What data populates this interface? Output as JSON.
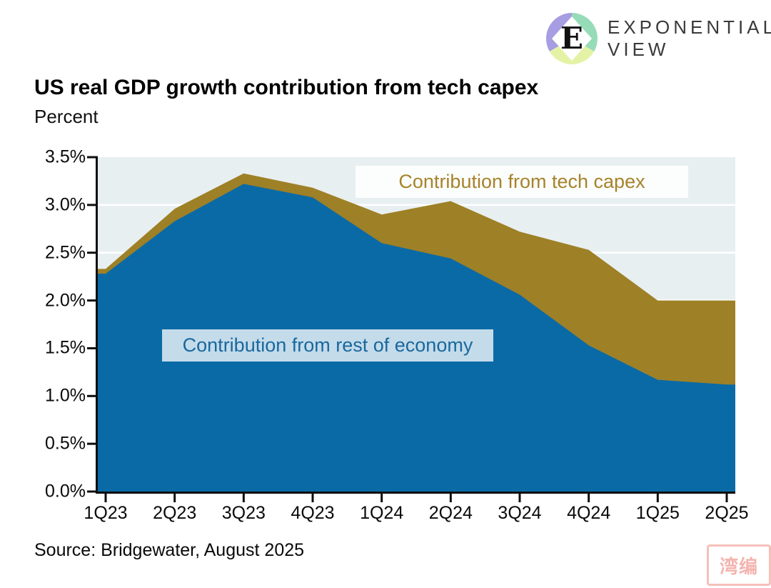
{
  "branding": {
    "logo_line1": "EXPONENTIAL",
    "logo_line2": "VIEW"
  },
  "header": {
    "title": "US real GDP growth contribution from tech capex",
    "subtitle": "Percent"
  },
  "chart_data": {
    "type": "area",
    "stacked": true,
    "title": "US real GDP growth contribution from tech capex",
    "ylabel": "Percent",
    "ylim": [
      0,
      3.5
    ],
    "grid": true,
    "plot_bg": "#e8eff0",
    "gridline_color": "#ffffff",
    "axis_color": "#0e0e0e",
    "categories": [
      "1Q23",
      "2Q23",
      "3Q23",
      "4Q23",
      "1Q24",
      "2Q24",
      "3Q24",
      "4Q24",
      "1Q25",
      "2Q25"
    ],
    "series": [
      {
        "name": "Contribution from rest of economy",
        "color": "#0a6aa6",
        "values": [
          2.28,
          2.83,
          3.22,
          3.08,
          2.6,
          2.44,
          2.06,
          1.53,
          1.17,
          1.12
        ]
      },
      {
        "name": "Contribution from tech capex",
        "color": "#9e8026",
        "values": [
          0.05,
          0.13,
          0.11,
          0.1,
          0.3,
          0.6,
          0.66,
          1.0,
          0.83,
          0.88
        ]
      }
    ],
    "totals": [
      2.33,
      2.96,
      3.33,
      3.18,
      2.9,
      3.04,
      2.72,
      2.53,
      2.0,
      2.0
    ],
    "y_tick_labels": [
      "0.0%",
      "0.5%",
      "1.0%",
      "1.5%",
      "2.0%",
      "2.5%",
      "3.0%",
      "3.5%"
    ],
    "annotations": [
      {
        "text": "Contribution from tech capex",
        "color": "#a6832a"
      },
      {
        "text": "Contribution from rest of economy",
        "color": "#19689e"
      }
    ]
  },
  "footer": {
    "source": "Source: Bridgewater, August 2025"
  },
  "watermark": {
    "text": "湾编"
  }
}
